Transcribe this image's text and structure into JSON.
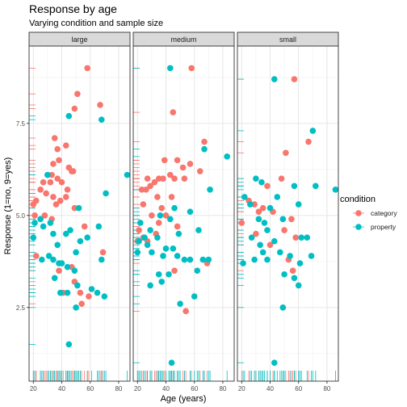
{
  "chart_data": {
    "type": "scatter",
    "title": "Response by age",
    "subtitle": "Varying condition and sample size",
    "xlabel": "Age (years)",
    "ylabel": "Response (1=no, 9=yes)",
    "xlim": [
      17,
      88
    ],
    "ylim": [
      0.5,
      9.6
    ],
    "x_ticks": [
      20,
      40,
      60,
      80
    ],
    "x_tick_labels": [
      "20",
      "40",
      "60",
      "80"
    ],
    "y_ticks": [
      2.5,
      5.0,
      7.5
    ],
    "y_tick_labels": [
      "2.5",
      "5.0",
      "7.5"
    ],
    "grid": true,
    "rugs": true,
    "legend": {
      "title": "condition",
      "position": "right",
      "entries": [
        "category",
        "property"
      ]
    },
    "colors": {
      "category": "#F8766D",
      "property": "#00BFC4"
    },
    "panels": [
      {
        "name": "large",
        "series": [
          {
            "name": "category",
            "points": [
              [
                58,
                9.0
              ],
              [
                51,
                8.3
              ],
              [
                67,
                8.0
              ],
              [
                49,
                7.9
              ],
              [
                35,
                7.1
              ],
              [
                43,
                6.9
              ],
              [
                37,
                6.8
              ],
              [
                38,
                6.5
              ],
              [
                34,
                6.4
              ],
              [
                45,
                6.3
              ],
              [
                47,
                6.2
              ],
              [
                48,
                6.2
              ],
              [
                30,
                6.1
              ],
              [
                33,
                6.1
              ],
              [
                37,
                6.0
              ],
              [
                27,
                5.9
              ],
              [
                32,
                5.9
              ],
              [
                40,
                5.9
              ],
              [
                44,
                5.7
              ],
              [
                25,
                5.7
              ],
              [
                29,
                5.6
              ],
              [
                34,
                5.5
              ],
              [
                43,
                5.5
              ],
              [
                39,
                5.4
              ],
              [
                22,
                5.4
              ],
              [
                36,
                5.3
              ],
              [
                49,
                5.2
              ],
              [
                21,
                5.0
              ],
              [
                28,
                5.0
              ],
              [
                33,
                4.9
              ],
              [
                56,
                4.7
              ],
              [
                69,
                4.0
              ],
              [
                22,
                3.9
              ],
              [
                47,
                3.6
              ],
              [
                38,
                3.5
              ],
              [
                49,
                3.2
              ],
              [
                53,
                2.9
              ],
              [
                41,
                2.9
              ],
              [
                54,
                2.6
              ],
              [
                59,
                2.8
              ],
              [
                20,
                5.3
              ]
            ]
          },
          {
            "name": "property",
            "points": [
              [
                45,
                7.7
              ],
              [
                68,
                7.6
              ],
              [
                86,
                6.1
              ],
              [
                30,
                6.1
              ],
              [
                52,
                5.2
              ],
              [
                71,
                5.6
              ],
              [
                25,
                4.9
              ],
              [
                21,
                4.8
              ],
              [
                27,
                4.7
              ],
              [
                32,
                4.8
              ],
              [
                34,
                4.5
              ],
              [
                46,
                4.6
              ],
              [
                66,
                4.7
              ],
              [
                58,
                4.4
              ],
              [
                43,
                4.5
              ],
              [
                20,
                4.4
              ],
              [
                53,
                4.3
              ],
              [
                37,
                4.2
              ],
              [
                50,
                4.0
              ],
              [
                31,
                3.9
              ],
              [
                26,
                3.8
              ],
              [
                34,
                3.8
              ],
              [
                40,
                3.7
              ],
              [
                38,
                3.7
              ],
              [
                44,
                3.6
              ],
              [
                68,
                3.8
              ],
              [
                49,
                3.5
              ],
              [
                35,
                3.3
              ],
              [
                51,
                3.1
              ],
              [
                61,
                3.0
              ],
              [
                39,
                2.9
              ],
              [
                44,
                2.9
              ],
              [
                70,
                2.8
              ],
              [
                50,
                2.5
              ],
              [
                65,
                2.9
              ],
              [
                45,
                1.5
              ]
            ]
          }
        ]
      },
      {
        "name": "medium",
        "series": [
          {
            "name": "category",
            "points": [
              [
                58,
                9.0
              ],
              [
                45,
                7.8
              ],
              [
                67,
                7.0
              ],
              [
                48,
                6.5
              ],
              [
                39,
                6.5
              ],
              [
                57,
                6.4
              ],
              [
                52,
                6.3
              ],
              [
                64,
                6.2
              ],
              [
                43,
                6.1
              ],
              [
                53,
                6.0
              ],
              [
                46,
                6.0
              ],
              [
                27,
                6.0
              ],
              [
                35,
                6.0
              ],
              [
                38,
                6.0
              ],
              [
                32,
                5.9
              ],
              [
                29,
                5.8
              ],
              [
                26,
                5.7
              ],
              [
                23,
                5.7
              ],
              [
                34,
                5.5
              ],
              [
                44,
                5.5
              ],
              [
                24,
                5.3
              ],
              [
                37,
                5.2
              ],
              [
                30,
                5.0
              ],
              [
                40,
                5.0
              ],
              [
                35,
                4.8
              ],
              [
                48,
                4.7
              ],
              [
                33,
                4.5
              ],
              [
                24,
                4.4
              ],
              [
                20,
                4.3
              ],
              [
                27,
                4.3
              ],
              [
                69,
                3.7
              ],
              [
                46,
                3.5
              ],
              [
                54,
                2.4
              ],
              [
                21,
                4.6
              ]
            ]
          },
          {
            "name": "property",
            "points": [
              [
                43,
                9.0
              ],
              [
                83,
                6.6
              ],
              [
                67,
                6.8
              ],
              [
                71,
                5.7
              ],
              [
                46,
                5.2
              ],
              [
                57,
                5.1
              ],
              [
                36,
                5.0
              ],
              [
                43,
                4.9
              ],
              [
                22,
                4.8
              ],
              [
                29,
                4.6
              ],
              [
                49,
                4.5
              ],
              [
                63,
                4.6
              ],
              [
                25,
                4.4
              ],
              [
                34,
                4.4
              ],
              [
                21,
                4.3
              ],
              [
                27,
                4.2
              ],
              [
                30,
                4.0
              ],
              [
                40,
                4.1
              ],
              [
                45,
                4.1
              ],
              [
                48,
                3.9
              ],
              [
                20,
                4.0
              ],
              [
                38,
                3.9
              ],
              [
                53,
                3.8
              ],
              [
                66,
                3.8
              ],
              [
                70,
                3.8
              ],
              [
                62,
                3.5
              ],
              [
                57,
                3.8
              ],
              [
                42,
                3.4
              ],
              [
                35,
                3.4
              ],
              [
                37,
                3.2
              ],
              [
                29,
                3.1
              ],
              [
                60,
                2.8
              ],
              [
                50,
                2.6
              ],
              [
                44,
                1.0
              ]
            ]
          }
        ]
      },
      {
        "name": "small",
        "series": [
          {
            "name": "category",
            "points": [
              [
                57,
                8.7
              ],
              [
                67,
                7.0
              ],
              [
                51,
                6.7
              ],
              [
                48,
                6.0
              ],
              [
                38,
                5.8
              ],
              [
                25,
                5.4
              ],
              [
                29,
                5.3
              ],
              [
                35,
                5.2
              ],
              [
                42,
                5.1
              ],
              [
                32,
                5.1
              ],
              [
                55,
                4.9
              ],
              [
                20,
                4.8
              ],
              [
                50,
                4.6
              ],
              [
                30,
                4.5
              ],
              [
                58,
                4.4
              ],
              [
                40,
                4.2
              ],
              [
                53,
                3.8
              ],
              [
                56,
                3.5
              ]
            ]
          },
          {
            "name": "property",
            "points": [
              [
                43,
                8.7
              ],
              [
                70,
                7.3
              ],
              [
                30,
                6.0
              ],
              [
                34,
                5.9
              ],
              [
                22,
                5.5
              ],
              [
                45,
                5.5
              ],
              [
                57,
                5.8
              ],
              [
                26,
                5.3
              ],
              [
                40,
                5.2
              ],
              [
                60,
                5.3
              ],
              [
                32,
                4.9
              ],
              [
                36,
                4.8
              ],
              [
                49,
                4.9
              ],
              [
                38,
                4.6
              ],
              [
                43,
                4.3
              ],
              [
                27,
                4.4
              ],
              [
                62,
                4.4
              ],
              [
                33,
                4.2
              ],
              [
                47,
                4.0
              ],
              [
                29,
                3.8
              ],
              [
                35,
                4.0
              ],
              [
                54,
                3.9
              ],
              [
                69,
                3.9
              ],
              [
                21,
                3.7
              ],
              [
                61,
                3.7
              ],
              [
                38,
                3.8
              ],
              [
                50,
                3.4
              ],
              [
                57,
                3.3
              ],
              [
                60,
                3.1
              ],
              [
                86,
                5.7
              ],
              [
                72,
                5.8
              ],
              [
                49,
                2.5
              ],
              [
                43,
                1.0
              ],
              [
                66,
                4.4
              ]
            ]
          }
        ]
      }
    ]
  }
}
